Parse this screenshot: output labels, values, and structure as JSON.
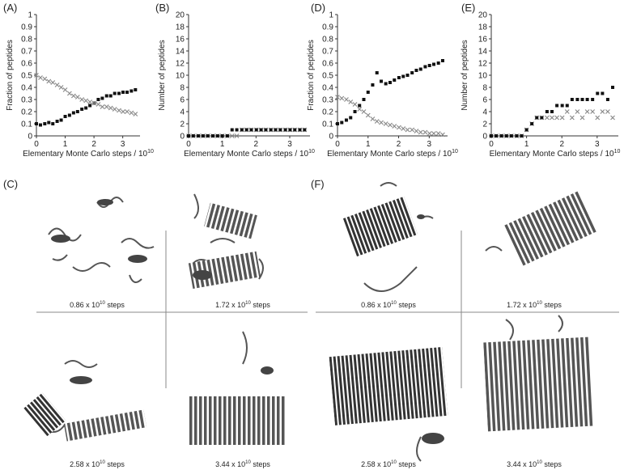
{
  "chart_data": [
    {
      "type": "scatter",
      "label": "(A)",
      "ylabel": "Fraction of peptides",
      "xlabel": "Elementary Monte Carlo steps / 10",
      "xlabel_sup": "10",
      "x": [
        0,
        0.14,
        0.29,
        0.43,
        0.57,
        0.72,
        0.86,
        1.0,
        1.15,
        1.29,
        1.43,
        1.58,
        1.72,
        1.86,
        2.01,
        2.15,
        2.29,
        2.44,
        2.58,
        2.72,
        2.87,
        3.01,
        3.15,
        3.3,
        3.44
      ],
      "series": [
        {
          "color": "#111111",
          "marker": "square",
          "values": [
            0.1,
            0.09,
            0.1,
            0.11,
            0.1,
            0.12,
            0.13,
            0.16,
            0.17,
            0.19,
            0.2,
            0.22,
            0.23,
            0.25,
            0.27,
            0.3,
            0.31,
            0.33,
            0.33,
            0.35,
            0.35,
            0.36,
            0.36,
            0.37,
            0.38
          ]
        },
        {
          "color": "#8a8a8a",
          "marker": "cross",
          "values": [
            0.5,
            0.48,
            0.47,
            0.45,
            0.44,
            0.42,
            0.4,
            0.38,
            0.35,
            0.33,
            0.32,
            0.3,
            0.29,
            0.28,
            0.27,
            0.26,
            0.24,
            0.24,
            0.23,
            0.22,
            0.21,
            0.2,
            0.2,
            0.19,
            0.18
          ]
        }
      ],
      "xlim": [
        0,
        3.6
      ],
      "xticks": [
        0,
        1,
        2,
        3
      ],
      "ylim": [
        0,
        1
      ],
      "yticks": [
        0,
        0.1,
        0.2,
        0.3,
        0.4,
        0.5,
        0.6,
        0.7,
        0.8,
        0.9,
        1
      ]
    },
    {
      "type": "scatter",
      "label": "(B)",
      "ylabel": "Number of peptides",
      "xlabel": "Elementary Monte Carlo steps / 10",
      "xlabel_sup": "10",
      "x": [
        0,
        0.14,
        0.29,
        0.43,
        0.57,
        0.72,
        0.86,
        1.0,
        1.15,
        1.29,
        1.43,
        1.58,
        1.72,
        1.86,
        2.01,
        2.15,
        2.29,
        2.44,
        2.58,
        2.72,
        2.87,
        3.01,
        3.15,
        3.3,
        3.44
      ],
      "series": [
        {
          "color": "#8a8a8a",
          "marker": "cross",
          "values": [
            0,
            0,
            0,
            0,
            0,
            0,
            0,
            0,
            0,
            0,
            0,
            1,
            1,
            1,
            1,
            1,
            1,
            1,
            1,
            1,
            1,
            1,
            1,
            1,
            1
          ]
        },
        {
          "color": "#111111",
          "marker": "square",
          "values": [
            0,
            0,
            0,
            0,
            0,
            0,
            0,
            0,
            0,
            1,
            1,
            1,
            1,
            1,
            1,
            1,
            1,
            1,
            1,
            1,
            1,
            1,
            1,
            1,
            1
          ]
        }
      ],
      "xlim": [
        0,
        3.6
      ],
      "xticks": [
        0,
        1,
        2,
        3
      ],
      "ylim": [
        0,
        20
      ],
      "yticks": [
        0,
        2,
        4,
        6,
        8,
        10,
        12,
        14,
        16,
        18,
        20
      ]
    },
    {
      "type": "scatter",
      "label": "(D)",
      "ylabel": "Fraction of peptides",
      "xlabel": "Elementary Monte Carlo steps / 10",
      "xlabel_sup": "10",
      "x": [
        0,
        0.14,
        0.29,
        0.43,
        0.57,
        0.72,
        0.86,
        1.0,
        1.15,
        1.29,
        1.43,
        1.58,
        1.72,
        1.86,
        2.01,
        2.15,
        2.29,
        2.44,
        2.58,
        2.72,
        2.87,
        3.01,
        3.15,
        3.3,
        3.44
      ],
      "series": [
        {
          "color": "#111111",
          "marker": "square",
          "values": [
            0.1,
            0.11,
            0.13,
            0.15,
            0.2,
            0.25,
            0.3,
            0.36,
            0.42,
            0.52,
            0.45,
            0.43,
            0.44,
            0.46,
            0.48,
            0.49,
            0.5,
            0.52,
            0.54,
            0.55,
            0.57,
            0.58,
            0.59,
            0.6,
            0.62
          ]
        },
        {
          "color": "#8a8a8a",
          "marker": "cross",
          "values": [
            0.32,
            0.31,
            0.3,
            0.28,
            0.26,
            0.22,
            0.2,
            0.17,
            0.14,
            0.12,
            0.11,
            0.1,
            0.09,
            0.08,
            0.07,
            0.06,
            0.05,
            0.05,
            0.04,
            0.03,
            0.03,
            0.02,
            0.02,
            0.02,
            0.01
          ]
        }
      ],
      "xlim": [
        0,
        3.6
      ],
      "xticks": [
        0,
        1,
        2,
        3
      ],
      "ylim": [
        0,
        1
      ],
      "yticks": [
        0,
        0.1,
        0.2,
        0.3,
        0.4,
        0.5,
        0.6,
        0.7,
        0.8,
        0.9,
        1
      ]
    },
    {
      "type": "scatter",
      "label": "(E)",
      "ylabel": "Number of peptides",
      "xlabel": "Elementary Monte Carlo steps / 10",
      "xlabel_sup": "10",
      "x": [
        0,
        0.14,
        0.29,
        0.43,
        0.57,
        0.72,
        0.86,
        1.0,
        1.15,
        1.29,
        1.43,
        1.58,
        1.72,
        1.86,
        2.01,
        2.15,
        2.29,
        2.44,
        2.58,
        2.72,
        2.87,
        3.01,
        3.15,
        3.3,
        3.44
      ],
      "series": [
        {
          "color": "#8a8a8a",
          "marker": "cross",
          "values": [
            0,
            0,
            0,
            0,
            0,
            0,
            0,
            1,
            2,
            3,
            3,
            3,
            3,
            3,
            3,
            4,
            3,
            4,
            3,
            4,
            4,
            3,
            4,
            4,
            3
          ]
        },
        {
          "color": "#111111",
          "marker": "square",
          "values": [
            0,
            0,
            0,
            0,
            0,
            0,
            0,
            1,
            2,
            3,
            3,
            4,
            4,
            5,
            5,
            5,
            6,
            6,
            6,
            6,
            6,
            7,
            7,
            6,
            8
          ]
        }
      ],
      "xlim": [
        0,
        3.6
      ],
      "xticks": [
        0,
        1,
        2,
        3
      ],
      "ylim": [
        0,
        20
      ],
      "yticks": [
        0,
        2,
        4,
        6,
        8,
        10,
        12,
        14,
        16,
        18,
        20
      ]
    }
  ],
  "structure_panels": [
    {
      "label": "(C)",
      "captions": [
        {
          "text": "0.86 x 10",
          "sup": "10",
          "tail": " steps"
        },
        {
          "text": "1.72 x 10",
          "sup": "10",
          "tail": " steps"
        },
        {
          "text": "2.58 x 10",
          "sup": "10",
          "tail": " steps"
        },
        {
          "text": "3.44 x 10",
          "sup": "10",
          "tail": " steps"
        }
      ]
    },
    {
      "label": "(F)",
      "captions": [
        {
          "text": "0.86 x 10",
          "sup": "10",
          "tail": " steps"
        },
        {
          "text": "1.72 x 10",
          "sup": "10",
          "tail": " steps"
        },
        {
          "text": "2.58 x 10",
          "sup": "10",
          "tail": " steps"
        },
        {
          "text": "3.44 x 10",
          "sup": "10",
          "tail": " steps"
        }
      ]
    }
  ]
}
